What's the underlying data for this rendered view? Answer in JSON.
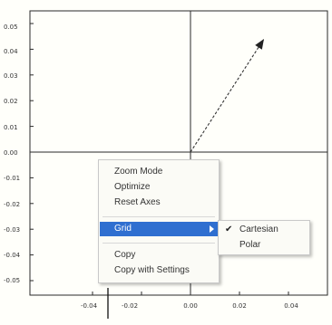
{
  "chart": {
    "y_ticks": [
      "0.05",
      "0.04",
      "0.03",
      "0.02",
      "0.01",
      "0.00",
      "-0.01",
      "-0.02",
      "-0.03",
      "-0.04",
      "-0.05"
    ],
    "x_ticks": [
      "-0.04",
      "-0.02",
      "0.00",
      "0.02",
      "0.04"
    ]
  },
  "chart_data": {
    "type": "scatter",
    "title": "",
    "xlabel": "",
    "ylabel": "",
    "xlim": [
      -0.055,
      0.055
    ],
    "ylim": [
      -0.055,
      0.055
    ],
    "grid": false,
    "series": [
      {
        "type": "vector",
        "x": [
          0.0,
          0.03
        ],
        "y": [
          0.0,
          0.044
        ]
      }
    ]
  },
  "context_menu": {
    "items": [
      {
        "label": "Zoom Mode"
      },
      {
        "label": "Optimize"
      },
      {
        "label": "Reset Axes"
      },
      {
        "label": "Grid",
        "has_submenu": true,
        "selected": true
      },
      {
        "label": "Copy"
      },
      {
        "label": "Copy with Settings"
      }
    ]
  },
  "grid_submenu": {
    "items": [
      {
        "label": "Cartesian",
        "checked": true
      },
      {
        "label": "Polar",
        "checked": false
      }
    ]
  },
  "colors": {
    "highlight": "#2f6fd0",
    "background": "#fffffa"
  }
}
